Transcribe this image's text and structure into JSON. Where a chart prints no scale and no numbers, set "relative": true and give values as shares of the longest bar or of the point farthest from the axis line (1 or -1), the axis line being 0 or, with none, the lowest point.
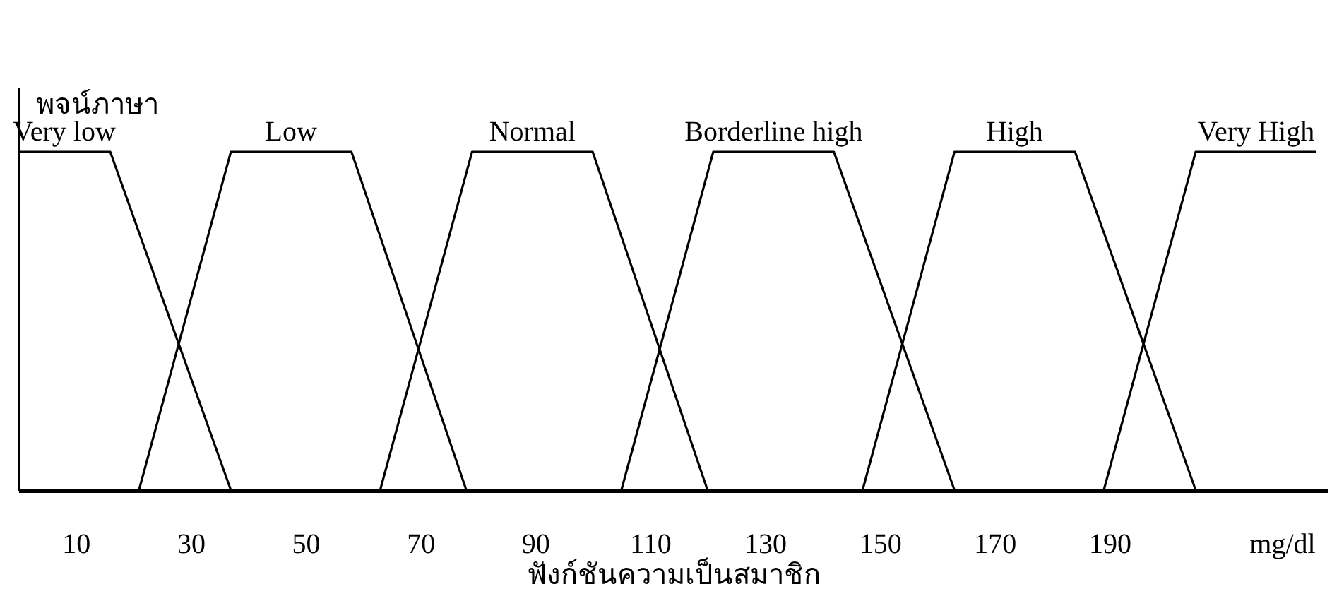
{
  "chart_data": {
    "type": "line",
    "relative": true,
    "ylabel": "พจน์ภาษา",
    "xlabel": "ฟังก์ชันความเป็นสมาชิก",
    "xlim": [
      0,
      228
    ],
    "xticks": [
      10,
      30,
      50,
      70,
      90,
      110,
      130,
      150,
      170,
      190,
      {
        "value": 220,
        "label": "mg/dl"
      }
    ],
    "grid": false,
    "marker": "none",
    "line_style": "solid",
    "series": [
      {
        "name": "Very low",
        "color": "#000000",
        "x": [
          0,
          16,
          37
        ],
        "values": [
          1,
          1,
          0
        ]
      },
      {
        "name": "Low",
        "color": "#000000",
        "x": [
          21,
          37,
          58,
          78
        ],
        "values": [
          0,
          1,
          1,
          0
        ]
      },
      {
        "name": "Normal",
        "color": "#000000",
        "x": [
          63,
          79,
          100,
          120
        ],
        "values": [
          0,
          1,
          1,
          0
        ]
      },
      {
        "name": "Borderline high",
        "color": "#000000",
        "x": [
          105,
          121,
          142,
          163
        ],
        "values": [
          0,
          1,
          1,
          0
        ]
      },
      {
        "name": "High",
        "color": "#000000",
        "x": [
          147,
          163,
          184,
          205
        ],
        "values": [
          0,
          1,
          1,
          0
        ]
      },
      {
        "name": "Very High",
        "color": "#000000",
        "x": [
          189,
          205,
          226
        ],
        "values": [
          0,
          1,
          1
        ]
      }
    ]
  }
}
